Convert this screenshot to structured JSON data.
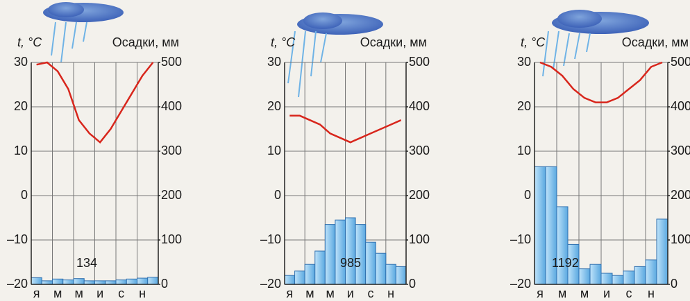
{
  "chart_data": [
    {
      "type": "climatogram",
      "ylabel": "t, °C",
      "y2label": "Осадки, мм",
      "annotation": "134",
      "categories": [
        "я",
        null,
        "м",
        null,
        "м",
        null,
        "и",
        null,
        "с",
        null,
        "н",
        null
      ],
      "series": [
        {
          "kind": "line",
          "color": "#d8261c",
          "values": [
            29.5,
            30,
            28,
            24,
            17,
            14,
            12,
            15,
            19,
            23,
            27,
            30
          ]
        },
        {
          "kind": "bar",
          "axis": "y2",
          "color": "#7cc0ec",
          "values": [
            15,
            8,
            12,
            10,
            13,
            8,
            8,
            8,
            10,
            12,
            14,
            16
          ]
        }
      ],
      "ylim": [
        -20,
        30
      ],
      "yticks": [
        30,
        20,
        10,
        0,
        {
          "value": -10,
          "label": "–10"
        },
        {
          "value": -20,
          "label": "–20"
        }
      ],
      "y2lim": [
        0,
        500
      ],
      "y2ticks": [
        500,
        400,
        300,
        200,
        100,
        0
      ],
      "grid": true
    },
    {
      "type": "climatogram",
      "ylabel": "t, °C",
      "y2label": "Осадки, мм",
      "annotation": "985",
      "categories": [
        "я",
        null,
        "м",
        null,
        "м",
        null,
        "и",
        null,
        "с",
        null,
        "н",
        null
      ],
      "series": [
        {
          "kind": "line",
          "color": "#d8261c",
          "values": [
            18,
            18,
            17,
            16,
            14,
            13,
            12,
            13,
            14,
            15,
            16,
            17
          ]
        },
        {
          "kind": "bar",
          "axis": "y2",
          "color": "#7cc0ec",
          "values": [
            20,
            30,
            45,
            75,
            135,
            145,
            150,
            135,
            95,
            70,
            45,
            40
          ]
        }
      ],
      "ylim": [
        -20,
        30
      ],
      "yticks": [
        30,
        20,
        10,
        0,
        {
          "value": -10,
          "label": "–10"
        },
        {
          "value": -20,
          "label": "–20"
        }
      ],
      "y2lim": [
        0,
        500
      ],
      "y2ticks": [
        500,
        400,
        300,
        200,
        100,
        0
      ],
      "grid": true
    },
    {
      "type": "climatogram",
      "ylabel": "t, °C",
      "y2label": "Осадки, мм",
      "annotation": "1192",
      "categories": [
        "я",
        null,
        "м",
        null,
        "м",
        null,
        "и",
        null,
        "с",
        null,
        "н",
        null
      ],
      "series": [
        {
          "kind": "line",
          "color": "#d8261c",
          "values": [
            30,
            29,
            27,
            24,
            22,
            21,
            21,
            22,
            24,
            26,
            29,
            30
          ]
        },
        {
          "kind": "bar",
          "axis": "y2",
          "color": "#7cc0ec",
          "values": [
            265,
            265,
            175,
            90,
            35,
            45,
            25,
            20,
            30,
            40,
            55,
            147
          ]
        }
      ],
      "ylim": [
        -20,
        30
      ],
      "yticks": [
        30,
        20,
        10,
        0,
        {
          "value": -10,
          "label": "–10"
        },
        {
          "value": -20,
          "label": "–20"
        }
      ],
      "y2lim": [
        0,
        500
      ],
      "y2ticks": [
        500,
        400,
        300,
        200,
        100,
        0
      ],
      "grid": true
    }
  ]
}
